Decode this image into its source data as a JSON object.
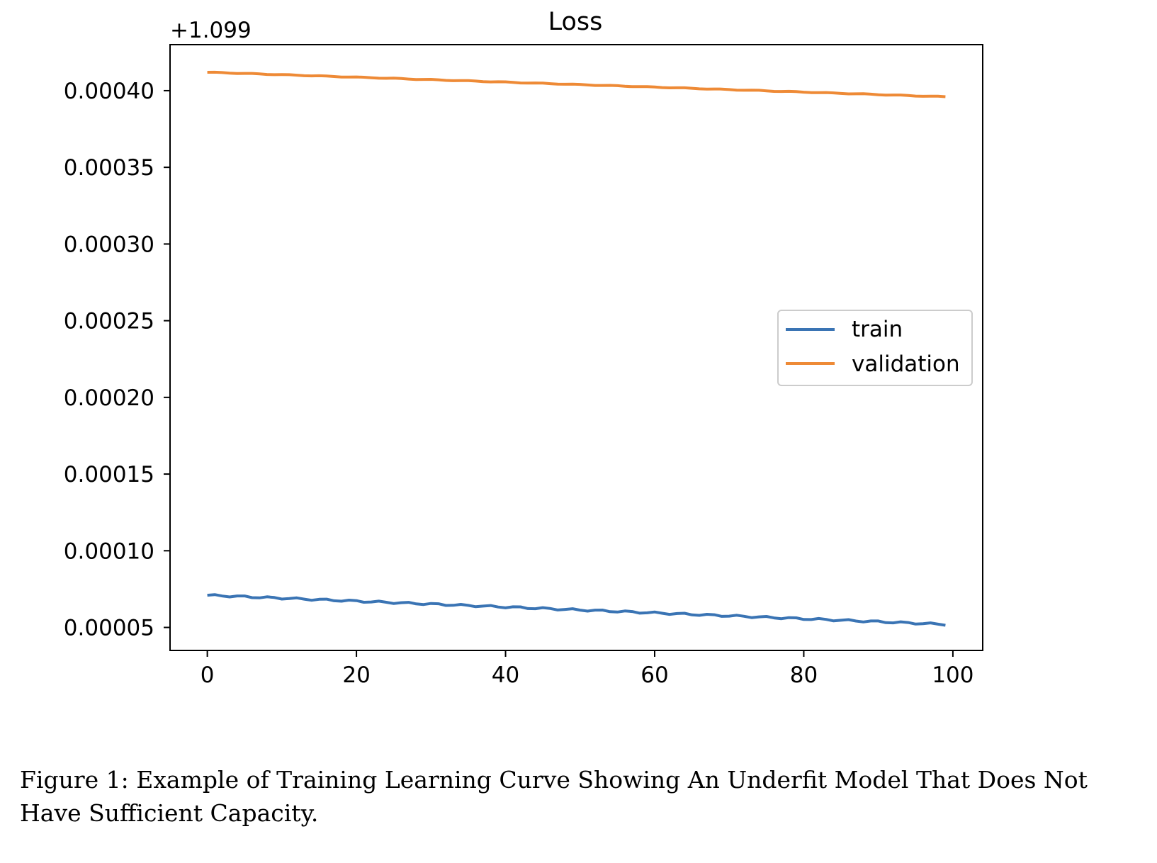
{
  "chart_data": {
    "type": "line",
    "title": "Loss",
    "offset_text": "+1.099",
    "x_ticks": [
      0,
      20,
      40,
      60,
      80,
      100
    ],
    "y_ticks": [
      "0.00005",
      "0.00010",
      "0.00015",
      "0.00020",
      "0.00025",
      "0.00030",
      "0.00035",
      "0.00040"
    ],
    "y_tick_values": [
      5e-05,
      0.0001,
      0.00015,
      0.0002,
      0.00025,
      0.0003,
      0.00035,
      0.0004
    ],
    "xlim": [
      -5,
      104
    ],
    "ylim": [
      3.5e-05,
      0.00043
    ],
    "grid": false,
    "legend_position": "center-right",
    "series": [
      {
        "name": "train",
        "color": "#1f77b4",
        "start": 7.1e-05,
        "end": 5.2e-05,
        "x_start": 0,
        "x_end": 99
      },
      {
        "name": "validation",
        "color": "#ff7f0e",
        "start": 0.000412,
        "end": 0.000396,
        "x_start": 0,
        "x_end": 99
      }
    ]
  },
  "caption": "Figure 1: Example of Training Learning Curve Showing An Underfit Model That Does Not Have Sufficient Capacity."
}
